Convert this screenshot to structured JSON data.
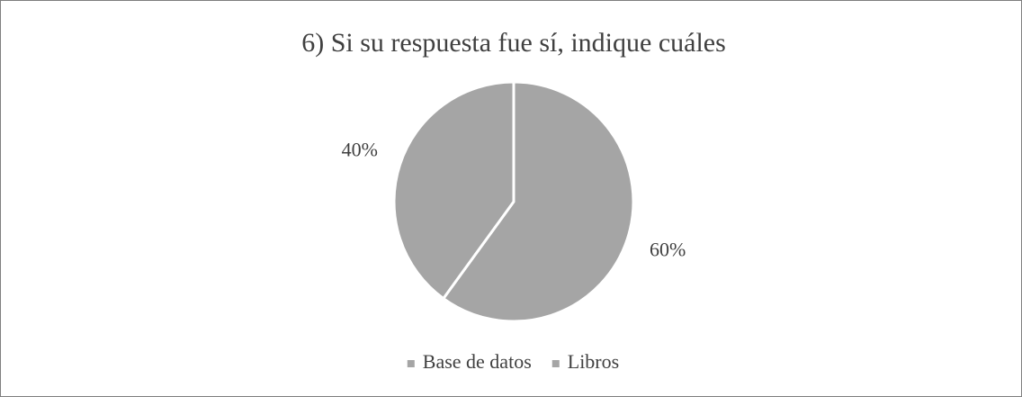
{
  "chart_data": {
    "type": "pie",
    "title": "6) Si su respuesta fue sí, indique cuáles",
    "categories": [
      "Base de datos",
      "Libros"
    ],
    "values": [
      60,
      40
    ],
    "value_labels": [
      "60%",
      "40%"
    ],
    "colors": [
      "#a5a5a5",
      "#a5a5a5"
    ],
    "legend": "bottom"
  }
}
